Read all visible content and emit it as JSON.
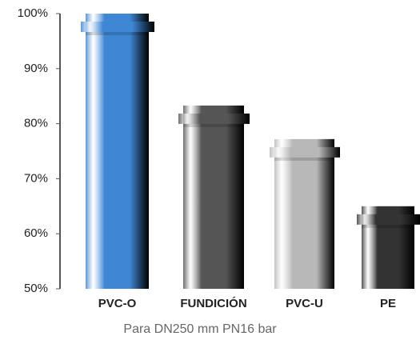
{
  "chart_data": {
    "type": "bar",
    "categories": [
      "PVC-O",
      "FUNDICIÓN",
      "PVC-U",
      "PE"
    ],
    "values": [
      100,
      83.3,
      77.2,
      65
    ],
    "colors": [
      "#3f86d4",
      "#555555",
      "#b8b8b8",
      "#333333"
    ],
    "x_label": "Para DN250 mm PN16 bar",
    "ylim": [
      50,
      100
    ],
    "yticks": [
      {
        "value": 50,
        "label": "50%"
      },
      {
        "value": 60,
        "label": "60%"
      },
      {
        "value": 70,
        "label": "70%"
      },
      {
        "value": 80,
        "label": "80%"
      },
      {
        "value": 90,
        "label": "90%"
      },
      {
        "value": 100,
        "label": "100%"
      }
    ],
    "grid": false
  }
}
